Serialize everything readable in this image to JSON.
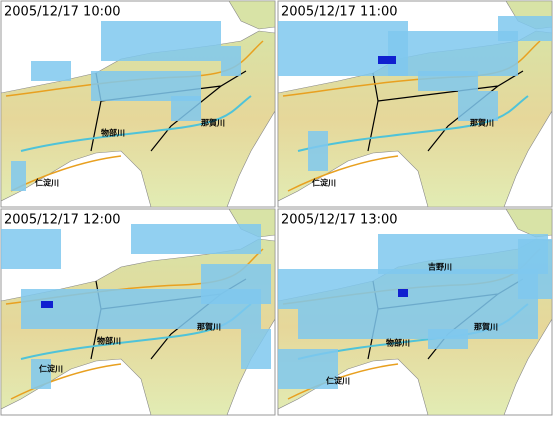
{
  "panels": [
    {
      "timestamp": "2005/12/17 10:00",
      "labels": [
        "物部川",
        "那賀川",
        "仁淀川"
      ]
    },
    {
      "timestamp": "2005/12/17 11:00",
      "labels": [
        "那賀川",
        "仁淀川"
      ]
    },
    {
      "timestamp": "2005/12/17 12:00",
      "labels": [
        "物部川",
        "那賀川",
        "仁淀川"
      ]
    },
    {
      "timestamp": "2005/12/17 13:00",
      "labels": [
        "吉野川",
        "那賀川",
        "物部川",
        "仁淀川"
      ]
    }
  ]
}
